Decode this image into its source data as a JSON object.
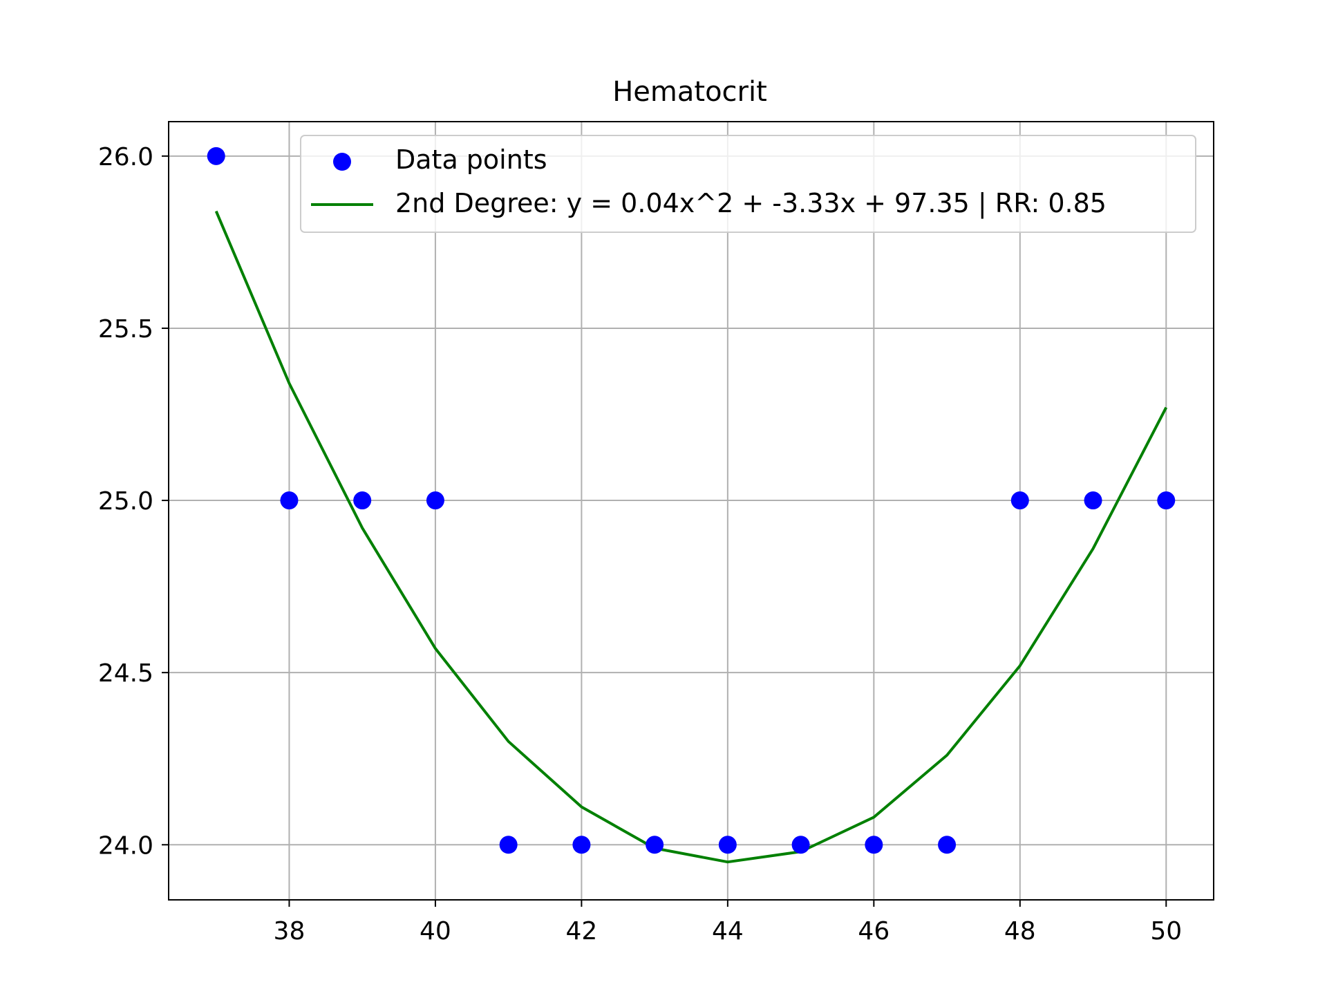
{
  "chart_data": {
    "type": "scatter",
    "title": "Hematocrit",
    "xlabel": "",
    "ylabel": "",
    "xlim": [
      36.35,
      50.65
    ],
    "ylim": [
      23.84,
      26.1
    ],
    "x_ticks": [
      38,
      40,
      42,
      44,
      46,
      48,
      50
    ],
    "y_ticks": [
      24.0,
      24.5,
      25.0,
      25.5,
      26.0
    ],
    "grid": true,
    "legend_position": "top-right",
    "series": [
      {
        "name": "Data points",
        "kind": "scatter",
        "color": "#0000ff",
        "x": [
          37,
          38,
          39,
          40,
          41,
          42,
          43,
          44,
          45,
          46,
          47,
          48,
          49,
          50
        ],
        "y": [
          26.0,
          25.0,
          25.0,
          25.0,
          24.0,
          24.0,
          24.0,
          24.0,
          24.0,
          24.0,
          24.0,
          25.0,
          25.0,
          25.0
        ]
      },
      {
        "name": "2nd Degree: y = 0.04x^2 + -3.33x + 97.35 | RR: 0.85",
        "kind": "line",
        "color": "#008000",
        "x": [
          37,
          38,
          39,
          40,
          41,
          42,
          43,
          44,
          45,
          46,
          47,
          48,
          49,
          50
        ],
        "y": [
          25.84,
          25.34,
          24.92,
          24.57,
          24.3,
          24.11,
          23.99,
          23.95,
          23.98,
          24.08,
          24.26,
          24.52,
          24.86,
          25.27
        ]
      }
    ]
  }
}
